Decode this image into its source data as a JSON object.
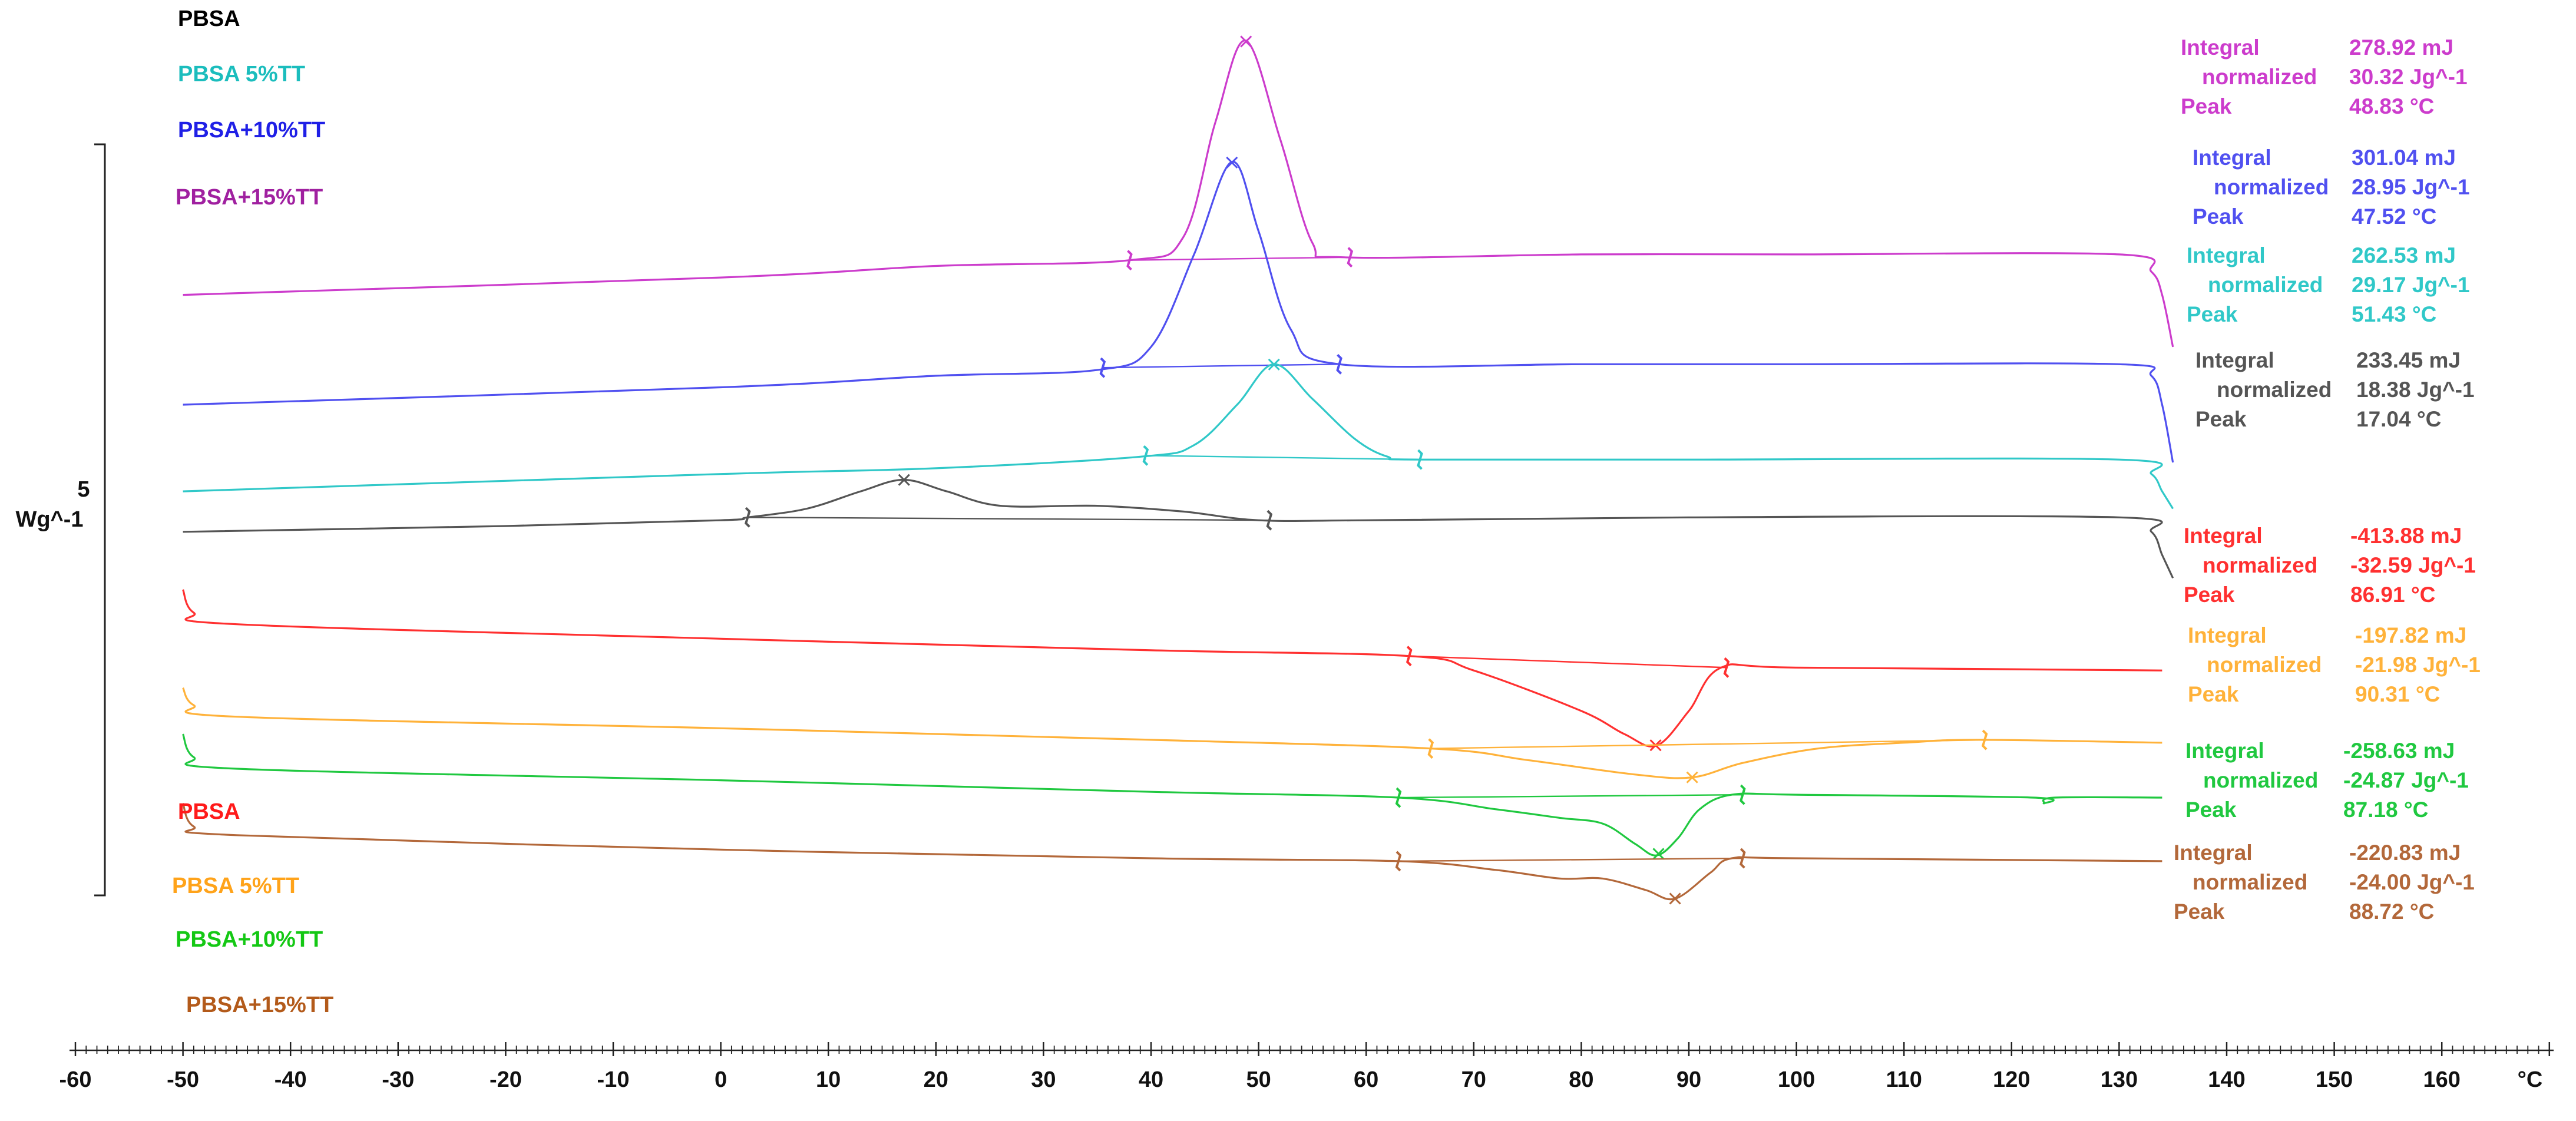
{
  "chart_data": {
    "type": "line",
    "title": "",
    "xlabel": "°C",
    "ylabel": "Wg^-1",
    "scale_bar_value": "5",
    "xlim": [
      -60,
      170
    ],
    "x_ticks": [
      "-60",
      "-50",
      "-40",
      "-30",
      "-20",
      "-10",
      "0",
      "10",
      "20",
      "30",
      "40",
      "50",
      "60",
      "70",
      "80",
      "90",
      "100",
      "110",
      "120",
      "130",
      "140",
      "150",
      "160"
    ],
    "legend_top": [
      {
        "text": "PBSA",
        "color": "#000000"
      },
      {
        "text": "PBSA 5%TT",
        "color": "#1bbdbd"
      },
      {
        "text": "PBSA+10%TT",
        "color": "#1f1fe6"
      },
      {
        "text": "PBSA+15%TT",
        "color": "#a020a0"
      }
    ],
    "legend_bottom": [
      {
        "text": "PBSA",
        "color": "#ff1a1a"
      },
      {
        "text": "PBSA 5%TT",
        "color": "#ffa31a"
      },
      {
        "text": "PBSA+10%TT",
        "color": "#14c814"
      },
      {
        "text": "PBSA+15%TT",
        "color": "#b35a1a"
      }
    ],
    "series": [
      {
        "name": "PBSA+15%TT",
        "kind": "cooling",
        "color": "#cc3ccc",
        "points": [
          [
            -50,
            0.3
          ],
          [
            0,
            0.6
          ],
          [
            20,
            0.8
          ],
          [
            38,
            0.9
          ],
          [
            43,
            1.3
          ],
          [
            46,
            3.3
          ],
          [
            48.8,
            4.7
          ],
          [
            52,
            3.0
          ],
          [
            55,
            1.2
          ],
          [
            58,
            0.95
          ],
          [
            80,
            1.0
          ],
          [
            100,
            1.0
          ],
          [
            130,
            1.0
          ],
          [
            133,
            0.7
          ],
          [
            134,
            0.3
          ],
          [
            135,
            -0.6
          ]
        ],
        "baseline_from": 38,
        "baseline_to": 58.5,
        "peak": 48.83,
        "integral": {
          "Integral": "278.92 mJ",
          "normalized": "30.32 Jg^-1",
          "Peak": "48.83 °C"
        }
      },
      {
        "name": "PBSA+10%TT",
        "kind": "cooling",
        "color": "#5050f0",
        "points": [
          [
            -50,
            -1.6
          ],
          [
            0,
            -1.3
          ],
          [
            20,
            -1.1
          ],
          [
            35,
            -1.0
          ],
          [
            40,
            -0.6
          ],
          [
            44,
            1.0
          ],
          [
            47.5,
            2.6
          ],
          [
            50,
            1.4
          ],
          [
            53,
            -0.3
          ],
          [
            57.5,
            -0.9
          ],
          [
            80,
            -0.9
          ],
          [
            100,
            -0.9
          ],
          [
            130,
            -0.9
          ],
          [
            133,
            -1.1
          ],
          [
            134,
            -1.6
          ],
          [
            135,
            -2.6
          ]
        ],
        "baseline_from": 35.5,
        "baseline_to": 57.5,
        "peak": 47.52,
        "integral": {
          "Integral": "301.04 mJ",
          "normalized": "28.95 Jg^-1",
          "Peak": "47.52 °C"
        }
      },
      {
        "name": "PBSA 5%TT",
        "kind": "cooling",
        "color": "#30c8c8",
        "points": [
          [
            -50,
            -3.1
          ],
          [
            0,
            -2.8
          ],
          [
            20,
            -2.7
          ],
          [
            39,
            -2.5
          ],
          [
            44,
            -2.3
          ],
          [
            48,
            -1.6
          ],
          [
            51.4,
            -0.9
          ],
          [
            55,
            -1.5
          ],
          [
            59,
            -2.2
          ],
          [
            62,
            -2.5
          ],
          [
            65,
            -2.55
          ],
          [
            90,
            -2.55
          ],
          [
            130,
            -2.55
          ],
          [
            133,
            -2.8
          ],
          [
            134,
            -3.1
          ],
          [
            135,
            -3.4
          ]
        ],
        "baseline_from": 39.5,
        "baseline_to": 65,
        "peak": 51.43,
        "integral": {
          "Integral": "262.53 mJ",
          "normalized": "29.17 Jg^-1",
          "Peak": "51.43 °C"
        }
      },
      {
        "name": "PBSA",
        "kind": "cooling",
        "color": "#555555",
        "points": [
          [
            -50,
            -3.8
          ],
          [
            -20,
            -3.7
          ],
          [
            0,
            -3.6
          ],
          [
            2.5,
            -3.55
          ],
          [
            8,
            -3.4
          ],
          [
            13,
            -3.1
          ],
          [
            17,
            -2.9
          ],
          [
            21,
            -3.1
          ],
          [
            26,
            -3.35
          ],
          [
            35,
            -3.35
          ],
          [
            43,
            -3.45
          ],
          [
            50,
            -3.6
          ],
          [
            60,
            -3.6
          ],
          [
            90,
            -3.55
          ],
          [
            130,
            -3.55
          ],
          [
            133,
            -3.8
          ],
          [
            134,
            -4.2
          ],
          [
            135,
            -4.6
          ]
        ],
        "baseline_from": 2.5,
        "baseline_to": 51,
        "peak": 17.04,
        "integral": {
          "Integral": "233.45 mJ",
          "normalized": "18.38 Jg^-1",
          "Peak": "17.04 °C"
        }
      },
      {
        "name": "PBSA",
        "kind": "heating",
        "color": "#ff3030",
        "points": [
          [
            -50,
            -4.8
          ],
          [
            -49,
            -5.2
          ],
          [
            -45,
            -5.4
          ],
          [
            0,
            -5.65
          ],
          [
            40,
            -5.85
          ],
          [
            64,
            -5.95
          ],
          [
            70,
            -6.2
          ],
          [
            80,
            -6.9
          ],
          [
            84,
            -7.3
          ],
          [
            87,
            -7.5
          ],
          [
            90,
            -6.9
          ],
          [
            93,
            -6.15
          ],
          [
            100,
            -6.15
          ],
          [
            134,
            -6.2
          ]
        ],
        "baseline_from": 64,
        "baseline_to": 93.5,
        "peak": 86.91,
        "integral": {
          "Integral": "-413.88 mJ",
          "normalized": "-32.59 Jg^-1",
          "Peak": "86.91 °C"
        }
      },
      {
        "name": "PBSA 5%TT",
        "kind": "heating",
        "color": "#ffb23a",
        "points": [
          [
            -50,
            -6.5
          ],
          [
            -49,
            -6.8
          ],
          [
            -45,
            -7.0
          ],
          [
            0,
            -7.2
          ],
          [
            40,
            -7.4
          ],
          [
            66,
            -7.55
          ],
          [
            75,
            -7.75
          ],
          [
            85,
            -8.0
          ],
          [
            90.3,
            -8.05
          ],
          [
            95,
            -7.8
          ],
          [
            102,
            -7.55
          ],
          [
            110,
            -7.45
          ],
          [
            117,
            -7.4
          ],
          [
            134,
            -7.45
          ]
        ],
        "baseline_from": 66,
        "baseline_to": 117.5,
        "peak": 90.31,
        "integral": {
          "Integral": "-197.82 mJ",
          "normalized": "-21.98 Jg^-1",
          "Peak": "90.31 °C"
        }
      },
      {
        "name": "PBSA+10%TT",
        "kind": "heating",
        "color": "#20c840",
        "points": [
          [
            -50,
            -7.3
          ],
          [
            -49,
            -7.7
          ],
          [
            -45,
            -7.9
          ],
          [
            0,
            -8.1
          ],
          [
            40,
            -8.3
          ],
          [
            63,
            -8.4
          ],
          [
            72,
            -8.6
          ],
          [
            78,
            -8.75
          ],
          [
            82,
            -8.85
          ],
          [
            85,
            -9.2
          ],
          [
            87,
            -9.4
          ],
          [
            89,
            -9.1
          ],
          [
            91,
            -8.6
          ],
          [
            94,
            -8.35
          ],
          [
            100,
            -8.35
          ],
          [
            122,
            -8.4
          ],
          [
            123,
            -8.5
          ],
          [
            124,
            -8.4
          ],
          [
            134,
            -8.4
          ]
        ],
        "baseline_from": 63,
        "baseline_to": 95,
        "peak": 87.18,
        "integral": {
          "Integral": "-258.63 mJ",
          "normalized": "-24.87 Jg^-1",
          "Peak": "87.18 °C"
        }
      },
      {
        "name": "PBSA+15%TT",
        "kind": "heating",
        "color": "#b3683a",
        "points": [
          [
            -50,
            -8.5
          ],
          [
            -49,
            -8.9
          ],
          [
            -45,
            -9.05
          ],
          [
            0,
            -9.3
          ],
          [
            40,
            -9.45
          ],
          [
            63,
            -9.5
          ],
          [
            72,
            -9.65
          ],
          [
            78,
            -9.8
          ],
          [
            82,
            -9.8
          ],
          [
            86,
            -10.0
          ],
          [
            88.7,
            -10.15
          ],
          [
            92,
            -9.7
          ],
          [
            94,
            -9.45
          ],
          [
            100,
            -9.45
          ],
          [
            134,
            -9.5
          ]
        ],
        "baseline_from": 63,
        "baseline_to": 95,
        "peak": 88.72,
        "integral": {
          "Integral": "-220.83 mJ",
          "normalized": "-24.00 Jg^-1",
          "Peak": "88.72 °C"
        }
      }
    ]
  }
}
